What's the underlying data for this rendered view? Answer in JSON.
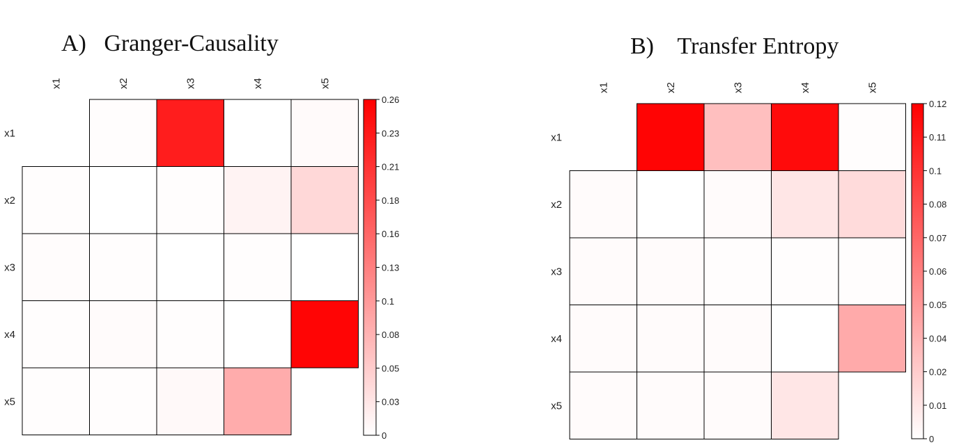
{
  "chart_data": [
    {
      "type": "heatmap",
      "panel": "A)",
      "title": "Granger-Causality",
      "rows": [
        "x1",
        "x2",
        "x3",
        "x4",
        "x5"
      ],
      "columns": [
        "x1",
        "x2",
        "x3",
        "x4",
        "x5"
      ],
      "values": [
        [
          null,
          0.002,
          0.23,
          0.0,
          0.005
        ],
        [
          0.002,
          0.0,
          0.002,
          0.012,
          0.04
        ],
        [
          0.003,
          0.002,
          0.0,
          0.002,
          0.0
        ],
        [
          0.002,
          0.004,
          0.002,
          0.0,
          0.255
        ],
        [
          0.002,
          0.002,
          0.006,
          0.085,
          null
        ]
      ],
      "colorbar": {
        "range": [
          0,
          0.26
        ],
        "tick_labels": [
          "0.26",
          "0.23",
          "0.21",
          "0.18",
          "0.16",
          "0.13",
          "0.1",
          "0.08",
          "0.05",
          "0.03",
          "0"
        ],
        "low_color": "#ffffff",
        "high_color": "#ff0000"
      }
    },
    {
      "type": "heatmap",
      "panel": "B)",
      "title": "Transfer Entropy",
      "rows": [
        "x1",
        "x2",
        "x3",
        "x4",
        "x5"
      ],
      "columns": [
        "x1",
        "x2",
        "x3",
        "x4",
        "x5"
      ],
      "values": [
        [
          null,
          0.118,
          0.03,
          0.115,
          0.001
        ],
        [
          0.002,
          0.0,
          0.002,
          0.012,
          0.017
        ],
        [
          0.002,
          0.002,
          0.001,
          0.001,
          0.001
        ],
        [
          0.002,
          0.002,
          0.002,
          0.0,
          0.04
        ],
        [
          0.002,
          0.002,
          0.002,
          0.012,
          null
        ]
      ],
      "colorbar": {
        "range": [
          0,
          0.12
        ],
        "tick_labels": [
          "0.12",
          "0.11",
          "0.1",
          "0.08",
          "0.07",
          "0.06",
          "0.05",
          "0.04",
          "0.02",
          "0.01",
          "0"
        ],
        "low_color": "#ffffff",
        "high_color": "#ff0000"
      }
    }
  ]
}
